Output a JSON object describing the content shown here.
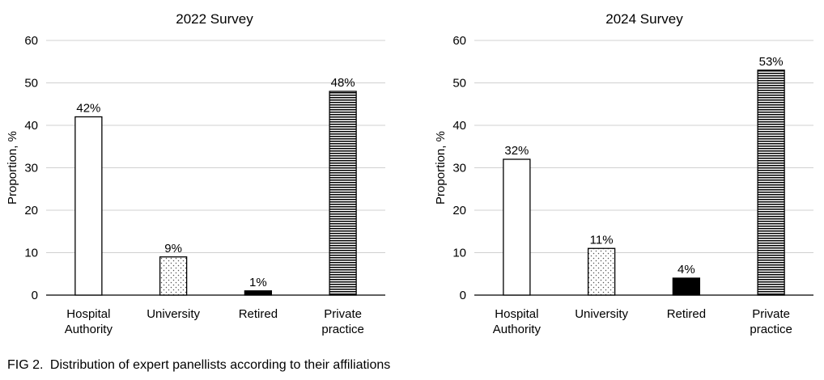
{
  "caption": {
    "label": "FIG 2.",
    "text": "Distribution of expert panellists according to their affiliations"
  },
  "chart_data": [
    {
      "type": "bar",
      "title": "2022 Survey",
      "xlabel": "",
      "ylabel": "Proportion, %",
      "categories": [
        "Hospital\nAuthority",
        "University",
        "Retired",
        "Private\npractice"
      ],
      "values": [
        42,
        9,
        1,
        48
      ],
      "data_labels": [
        "42%",
        "9%",
        "1%",
        "48%"
      ],
      "fills": [
        "white",
        "dotted",
        "solid-black",
        "horizontal-lines"
      ],
      "ylim": [
        0,
        60
      ],
      "yticks": [
        0,
        10,
        20,
        30,
        40,
        50,
        60
      ],
      "grid": true,
      "legend": "none"
    },
    {
      "type": "bar",
      "title": "2024 Survey",
      "xlabel": "",
      "ylabel": "Proportion, %",
      "categories": [
        "Hospital\nAuthority",
        "University",
        "Retired",
        "Private\npractice"
      ],
      "values": [
        32,
        11,
        4,
        53
      ],
      "data_labels": [
        "32%",
        "11%",
        "4%",
        "53%"
      ],
      "fills": [
        "white",
        "dotted",
        "solid-black",
        "horizontal-lines"
      ],
      "ylim": [
        0,
        60
      ],
      "yticks": [
        0,
        10,
        20,
        30,
        40,
        50,
        60
      ],
      "grid": true,
      "legend": "none"
    }
  ]
}
